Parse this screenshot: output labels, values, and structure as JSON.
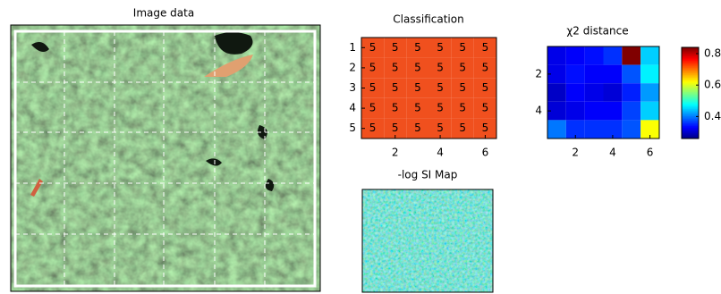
{
  "chart_data": [
    {
      "type": "image",
      "title": "Image data"
    },
    {
      "type": "heatmap",
      "title": "Classification",
      "color": "#f0501e",
      "values": [
        [
          5,
          5,
          5,
          5,
          5,
          5
        ],
        [
          5,
          5,
          5,
          5,
          5,
          5
        ],
        [
          5,
          5,
          5,
          5,
          5,
          5
        ],
        [
          5,
          5,
          5,
          5,
          5,
          5
        ],
        [
          5,
          5,
          5,
          5,
          5,
          5
        ]
      ],
      "xlim": [
        0.5,
        6.5
      ],
      "ylim": [
        0.5,
        5.5
      ],
      "xticks": [
        2,
        4,
        6
      ],
      "yticks": [
        1,
        2,
        3,
        4,
        5
      ],
      "cell_labels": true
    },
    {
      "type": "heatmap",
      "title": "χ2 distance",
      "colormap": "jet",
      "values": [
        [
          0.32,
          0.33,
          0.34,
          0.36,
          0.85,
          0.45
        ],
        [
          0.32,
          0.34,
          0.33,
          0.33,
          0.38,
          0.47
        ],
        [
          0.3,
          0.33,
          0.32,
          0.31,
          0.35,
          0.42
        ],
        [
          0.31,
          0.32,
          0.33,
          0.33,
          0.37,
          0.45
        ],
        [
          0.4,
          0.36,
          0.36,
          0.36,
          0.38,
          0.62
        ]
      ],
      "xlim": [
        0.5,
        6.5
      ],
      "ylim": [
        0.5,
        5.5
      ],
      "xticks": [
        2,
        4,
        6
      ],
      "yticks": [
        2,
        4
      ],
      "clim": [
        0.26,
        0.84
      ],
      "cticks": [
        0.4,
        0.6,
        0.8
      ],
      "colorbar": true
    },
    {
      "type": "image",
      "title": "-log SI Map"
    }
  ]
}
